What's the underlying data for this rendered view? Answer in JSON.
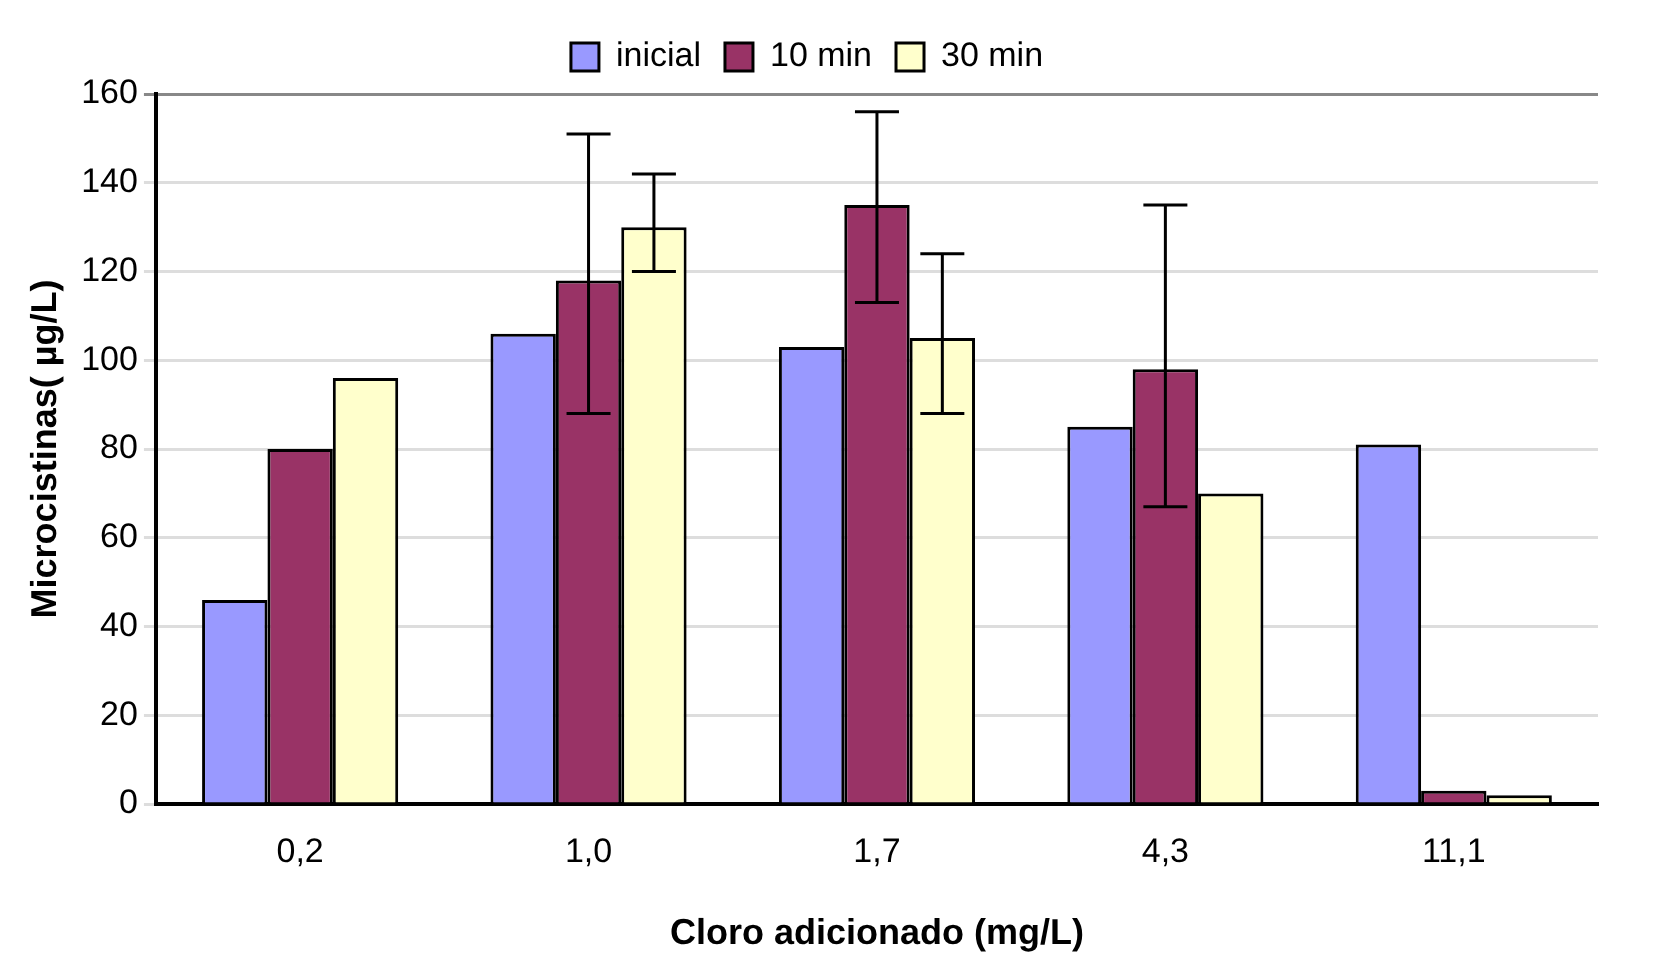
{
  "chart_data": {
    "type": "bar",
    "xlabel": "Cloro adicionado (mg/L)",
    "ylabel": "Microcistinas( µg/L)",
    "categories": [
      "0,2",
      "1,0",
      "1,7",
      "4,3",
      "11,1"
    ],
    "series": [
      {
        "name": "inicial",
        "color": "#9999ff",
        "values": [
          46,
          106,
          103,
          85,
          81
        ]
      },
      {
        "name": "10 min",
        "color": "#993366",
        "values": [
          80,
          118,
          135,
          98,
          3
        ],
        "errors": [
          null,
          [
            88,
            151
          ],
          [
            113,
            156
          ],
          [
            67,
            135
          ],
          null
        ]
      },
      {
        "name": "30 min",
        "color": "#ffffcc",
        "values": [
          96,
          130,
          105,
          70,
          2
        ],
        "errors": [
          null,
          [
            120,
            142
          ],
          [
            88,
            124
          ],
          null,
          null
        ]
      }
    ],
    "ylim": [
      0,
      160
    ],
    "yticks": [
      0,
      20,
      40,
      60,
      80,
      100,
      120,
      140,
      160
    ],
    "grid": "y",
    "legend": "top"
  }
}
